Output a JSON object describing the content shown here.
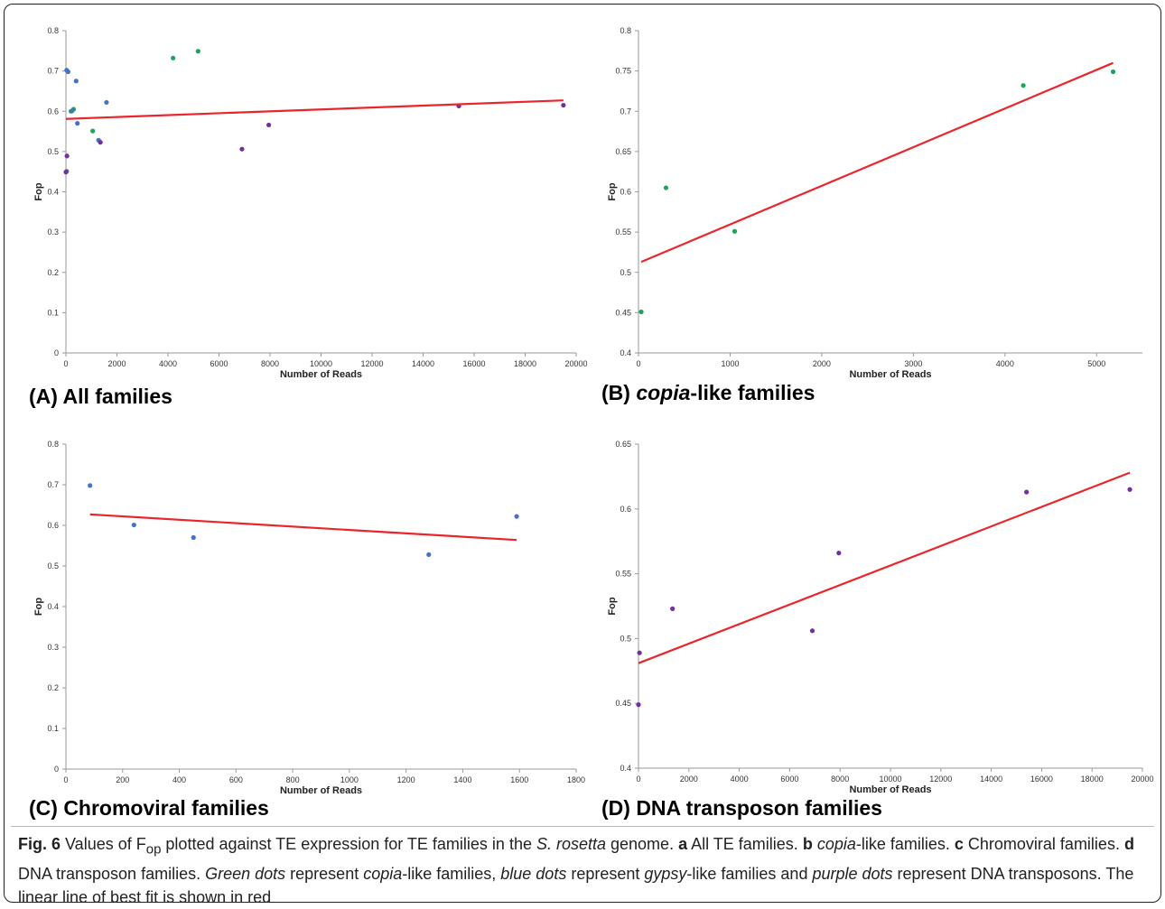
{
  "colors": {
    "copia": "#1fa35b",
    "gypsy": "#4472c4",
    "dna": "#7030a0",
    "fit_line": "#e8262b",
    "axis": "#9a9a9a"
  },
  "panels": [
    {
      "title_prefix": "(A) All families",
      "title_italic": "",
      "title_suffix": ""
    },
    {
      "title_prefix": "(B) ",
      "title_italic": "copia",
      "title_suffix": "-like families"
    },
    {
      "title_prefix": "(C) Chromoviral families",
      "title_italic": "",
      "title_suffix": ""
    },
    {
      "title_prefix": "(D) DNA transposon families",
      "title_italic": "",
      "title_suffix": ""
    }
  ],
  "chart_data": [
    {
      "type": "scatter",
      "xlabel": "Number of Reads",
      "ylabel": "Fop",
      "xlim": [
        0,
        20000
      ],
      "ylim": [
        0,
        0.8
      ],
      "xticks": [
        0,
        2000,
        4000,
        6000,
        8000,
        10000,
        12000,
        14000,
        16000,
        18000,
        20000
      ],
      "yticks": [
        0,
        0.1,
        0.2,
        0.3,
        0.4,
        0.5,
        0.6,
        0.7,
        0.8
      ],
      "series": [
        {
          "color_key": "copia",
          "points": [
            [
              30,
              0.451
            ],
            [
              300,
              0.605
            ],
            [
              1050,
              0.551
            ],
            [
              4200,
              0.732
            ],
            [
              5180,
              0.749
            ],
            [
              200,
              0.6
            ]
          ]
        },
        {
          "color_key": "gypsy",
          "points": [
            [
              85,
              0.698
            ],
            [
              240,
              0.601
            ],
            [
              450,
              0.57
            ],
            [
              1280,
              0.528
            ],
            [
              1590,
              0.622
            ],
            [
              400,
              0.675
            ],
            [
              30,
              0.702
            ]
          ]
        },
        {
          "color_key": "dna",
          "points": [
            [
              0,
              0.449
            ],
            [
              40,
              0.489
            ],
            [
              1350,
              0.523
            ],
            [
              6900,
              0.506
            ],
            [
              7950,
              0.566
            ],
            [
              15400,
              0.613
            ],
            [
              19500,
              0.615
            ]
          ]
        }
      ],
      "fit": [
        [
          0,
          0.581
        ],
        [
          19500,
          0.627
        ]
      ]
    },
    {
      "type": "scatter",
      "xlabel": "Number of Reads",
      "ylabel": "Fop",
      "xlim": [
        0,
        5500
      ],
      "ylim": [
        0.4,
        0.8
      ],
      "xticks": [
        0,
        1000,
        2000,
        3000,
        4000,
        5000
      ],
      "yticks": [
        0.4,
        0.45,
        0.5,
        0.55,
        0.6,
        0.65,
        0.7,
        0.75,
        0.8
      ],
      "series": [
        {
          "color_key": "copia",
          "points": [
            [
              30,
              0.451
            ],
            [
              300,
              0.605
            ],
            [
              1050,
              0.551
            ],
            [
              4200,
              0.732
            ],
            [
              5180,
              0.749
            ]
          ]
        }
      ],
      "fit": [
        [
          30,
          0.513
        ],
        [
          5180,
          0.76
        ]
      ]
    },
    {
      "type": "scatter",
      "xlabel": "Number of Reads",
      "ylabel": "Fop",
      "xlim": [
        0,
        1800
      ],
      "ylim": [
        0,
        0.8
      ],
      "xticks": [
        0,
        200,
        400,
        600,
        800,
        1000,
        1200,
        1400,
        1600,
        1800
      ],
      "yticks": [
        0,
        0.1,
        0.2,
        0.3,
        0.4,
        0.5,
        0.6,
        0.7,
        0.8
      ],
      "series": [
        {
          "color_key": "gypsy",
          "points": [
            [
              85,
              0.698
            ],
            [
              240,
              0.601
            ],
            [
              450,
              0.57
            ],
            [
              1280,
              0.528
            ],
            [
              1590,
              0.622
            ]
          ]
        }
      ],
      "fit": [
        [
          85,
          0.627
        ],
        [
          1590,
          0.564
        ]
      ]
    },
    {
      "type": "scatter",
      "xlabel": "Number of Reads",
      "ylabel": "Fop",
      "xlim": [
        0,
        20000
      ],
      "ylim": [
        0.4,
        0.65
      ],
      "xticks": [
        0,
        2000,
        4000,
        6000,
        8000,
        10000,
        12000,
        14000,
        16000,
        18000,
        20000
      ],
      "yticks": [
        0.4,
        0.45,
        0.5,
        0.55,
        0.6,
        0.65
      ],
      "series": [
        {
          "color_key": "dna",
          "points": [
            [
              0,
              0.449
            ],
            [
              40,
              0.489
            ],
            [
              1350,
              0.523
            ],
            [
              6900,
              0.506
            ],
            [
              7950,
              0.566
            ],
            [
              15400,
              0.613
            ],
            [
              19500,
              0.615
            ]
          ]
        }
      ],
      "fit": [
        [
          0,
          0.481
        ],
        [
          19500,
          0.628
        ]
      ]
    }
  ],
  "caption": {
    "fig_label": "Fig. 6",
    "t1": " Values of F",
    "sub": "op",
    "t2": " plotted against TE expression for TE families in the ",
    "species": "S. rosetta",
    "t3": " genome. ",
    "a": "a",
    "t4": " All TE families. ",
    "b": "b",
    "t5": " ",
    "copia1": "copia",
    "t6": "-like families. ",
    "c": "c",
    "t7": " Chromoviral families. ",
    "d": "d",
    "t8": " DNA transposon families. ",
    "green": "Green dots",
    "t9": " represent ",
    "copia2": "copia",
    "t10": "-like families, ",
    "blue": "blue dots",
    "t11": " represent ",
    "gypsy": "gypsy",
    "t12": "-like families and ",
    "purple": "purple dots",
    "t13": " represent DNA transposons. The linear line of best fit is shown in red"
  }
}
